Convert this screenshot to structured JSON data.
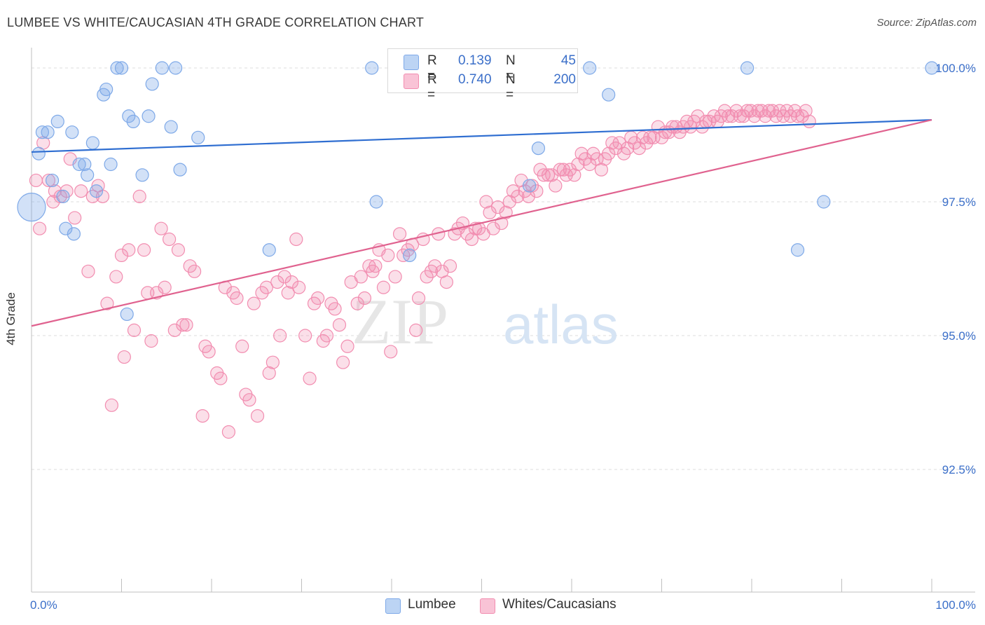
{
  "header": {
    "title": "LUMBEE VS WHITE/CAUCASIAN 4TH GRADE CORRELATION CHART",
    "source": "Source: ZipAtlas.com"
  },
  "watermark": {
    "zip": "ZIP",
    "atlas": "atlas"
  },
  "legend": {
    "rows": [
      {
        "r_label": "R =",
        "r_value": "0.139",
        "n_label": "N =",
        "n_value": "45",
        "color": "#7ea9e8"
      },
      {
        "r_label": "R =",
        "r_value": "0.740",
        "n_label": "N =",
        "n_value": "200",
        "color": "#f28db0"
      }
    ]
  },
  "bottom_legend": {
    "items": [
      {
        "label": "Lumbee",
        "color": "#7ea9e8"
      },
      {
        "label": "Whites/Caucasians",
        "color": "#f28db0"
      }
    ]
  },
  "chart_data": {
    "type": "scatter",
    "title": "LUMBEE VS WHITE/CAUCASIAN 4TH GRADE CORRELATION CHART",
    "xlabel": "",
    "ylabel": "4th Grade",
    "x_unit": "%",
    "y_unit": "%",
    "xlim": [
      0,
      100
    ],
    "ylim": [
      90.0,
      100.2
    ],
    "x_tick_labels": [
      "0.0%",
      "100.0%"
    ],
    "y_ticks": [
      100.0,
      97.5,
      95.0,
      92.5
    ],
    "y_tick_labels": [
      "100.0%",
      "97.5%",
      "95.0%",
      "92.5%"
    ],
    "grid": true,
    "legend_position": "top-center",
    "series": [
      {
        "name": "Lumbee",
        "color": "#7ea9e8",
        "trend": {
          "x": [
            0,
            100
          ],
          "y": [
            98.43,
            99.03
          ]
        },
        "points": [
          [
            0.8,
            98.4
          ],
          [
            1.2,
            98.8
          ],
          [
            1.8,
            98.8
          ],
          [
            2.3,
            97.9
          ],
          [
            2.9,
            99.0
          ],
          [
            3.5,
            97.6
          ],
          [
            3.8,
            97.0
          ],
          [
            4.5,
            98.8
          ],
          [
            4.7,
            96.9
          ],
          [
            5.3,
            98.2
          ],
          [
            5.9,
            98.2
          ],
          [
            6.2,
            98.0
          ],
          [
            6.8,
            98.6
          ],
          [
            7.2,
            97.7
          ],
          [
            8.0,
            99.5
          ],
          [
            8.3,
            99.6
          ],
          [
            8.8,
            98.2
          ],
          [
            9.5,
            100.0
          ],
          [
            10.0,
            100.0
          ],
          [
            10.6,
            95.4
          ],
          [
            10.8,
            99.1
          ],
          [
            11.3,
            99.0
          ],
          [
            12.3,
            98.0
          ],
          [
            13.0,
            99.1
          ],
          [
            13.4,
            99.7
          ],
          [
            14.5,
            100.0
          ],
          [
            15.5,
            98.9
          ],
          [
            16.0,
            100.0
          ],
          [
            16.5,
            98.1
          ],
          [
            18.5,
            98.7
          ],
          [
            26.4,
            96.6
          ],
          [
            38.3,
            97.5
          ],
          [
            37.8,
            100.0
          ],
          [
            42.0,
            96.5
          ],
          [
            55.3,
            97.8
          ],
          [
            56.3,
            98.5
          ],
          [
            62.0,
            100.0
          ],
          [
            64.1,
            99.5
          ],
          [
            79.5,
            100.0
          ],
          [
            85.1,
            96.6
          ],
          [
            88.0,
            97.5
          ],
          [
            100.0,
            100.0
          ],
          [
            0.0,
            97.4
          ]
        ]
      },
      {
        "name": "Whites/Caucasians",
        "color": "#f28db0",
        "trend": {
          "x": [
            0,
            100
          ],
          "y": [
            95.18,
            99.03
          ]
        },
        "points": [
          [
            0.5,
            97.9
          ],
          [
            0.9,
            97.0
          ],
          [
            1.3,
            98.6
          ],
          [
            1.9,
            97.9
          ],
          [
            2.4,
            97.5
          ],
          [
            2.6,
            97.7
          ],
          [
            3.2,
            97.6
          ],
          [
            3.9,
            97.7
          ],
          [
            4.3,
            98.3
          ],
          [
            4.8,
            97.2
          ],
          [
            5.5,
            97.7
          ],
          [
            6.3,
            96.2
          ],
          [
            6.8,
            97.6
          ],
          [
            7.4,
            97.8
          ],
          [
            7.9,
            97.6
          ],
          [
            8.4,
            95.6
          ],
          [
            8.9,
            93.7
          ],
          [
            9.4,
            96.1
          ],
          [
            10.0,
            96.5
          ],
          [
            10.3,
            94.6
          ],
          [
            10.8,
            96.6
          ],
          [
            11.4,
            95.1
          ],
          [
            12.0,
            97.6
          ],
          [
            12.5,
            96.6
          ],
          [
            12.9,
            95.8
          ],
          [
            13.3,
            94.9
          ],
          [
            13.9,
            95.8
          ],
          [
            14.4,
            97.0
          ],
          [
            14.8,
            95.9
          ],
          [
            15.3,
            96.8
          ],
          [
            15.9,
            95.1
          ],
          [
            16.3,
            96.6
          ],
          [
            16.8,
            95.2
          ],
          [
            17.2,
            95.2
          ],
          [
            17.6,
            96.3
          ],
          [
            18.1,
            96.2
          ],
          [
            19.0,
            93.5
          ],
          [
            19.3,
            94.8
          ],
          [
            19.7,
            94.7
          ],
          [
            20.6,
            94.3
          ],
          [
            21.0,
            94.2
          ],
          [
            21.5,
            95.9
          ],
          [
            21.9,
            93.2
          ],
          [
            22.4,
            95.8
          ],
          [
            22.8,
            95.7
          ],
          [
            23.4,
            94.8
          ],
          [
            23.8,
            93.9
          ],
          [
            24.2,
            93.8
          ],
          [
            24.7,
            95.6
          ],
          [
            25.1,
            93.5
          ],
          [
            25.6,
            95.8
          ],
          [
            26.1,
            95.9
          ],
          [
            26.4,
            94.3
          ],
          [
            26.8,
            94.5
          ],
          [
            27.3,
            96.0
          ],
          [
            27.6,
            95.0
          ],
          [
            28.1,
            96.1
          ],
          [
            28.5,
            95.8
          ],
          [
            28.9,
            96.0
          ],
          [
            29.4,
            96.8
          ],
          [
            29.7,
            95.9
          ],
          [
            30.4,
            95.0
          ],
          [
            30.9,
            94.2
          ],
          [
            31.4,
            95.6
          ],
          [
            31.8,
            95.7
          ],
          [
            32.4,
            94.9
          ],
          [
            32.8,
            95.0
          ],
          [
            33.3,
            95.6
          ],
          [
            33.7,
            95.5
          ],
          [
            34.2,
            95.2
          ],
          [
            34.6,
            94.5
          ],
          [
            35.1,
            94.8
          ],
          [
            35.5,
            96.0
          ],
          [
            36.2,
            95.6
          ],
          [
            36.6,
            96.1
          ],
          [
            37.0,
            95.7
          ],
          [
            37.5,
            96.3
          ],
          [
            37.9,
            96.2
          ],
          [
            38.2,
            96.3
          ],
          [
            38.6,
            96.6
          ],
          [
            39.1,
            95.9
          ],
          [
            39.6,
            96.5
          ],
          [
            39.9,
            94.7
          ],
          [
            40.4,
            96.1
          ],
          [
            40.9,
            96.9
          ],
          [
            41.3,
            96.5
          ],
          [
            41.8,
            96.6
          ],
          [
            42.3,
            96.7
          ],
          [
            42.7,
            95.1
          ],
          [
            43.0,
            95.7
          ],
          [
            43.5,
            96.8
          ],
          [
            43.9,
            96.1
          ],
          [
            44.4,
            96.2
          ],
          [
            44.8,
            96.3
          ],
          [
            45.2,
            96.9
          ],
          [
            45.6,
            96.2
          ],
          [
            46.1,
            96.0
          ],
          [
            46.5,
            96.3
          ],
          [
            47.0,
            96.9
          ],
          [
            47.4,
            97.0
          ],
          [
            47.9,
            97.1
          ],
          [
            48.4,
            96.9
          ],
          [
            48.9,
            96.8
          ],
          [
            49.3,
            97.0
          ],
          [
            49.7,
            97.0
          ],
          [
            50.2,
            96.9
          ],
          [
            50.5,
            97.5
          ],
          [
            50.9,
            97.3
          ],
          [
            51.3,
            97.0
          ],
          [
            51.8,
            97.4
          ],
          [
            52.2,
            97.1
          ],
          [
            52.7,
            97.3
          ],
          [
            53.1,
            97.5
          ],
          [
            53.5,
            97.7
          ],
          [
            54.0,
            97.6
          ],
          [
            54.4,
            97.9
          ],
          [
            54.8,
            97.7
          ],
          [
            55.2,
            97.6
          ],
          [
            55.6,
            97.8
          ],
          [
            56.1,
            97.7
          ],
          [
            56.5,
            98.1
          ],
          [
            56.9,
            98.0
          ],
          [
            57.4,
            98.0
          ],
          [
            57.8,
            98.0
          ],
          [
            58.2,
            97.8
          ],
          [
            58.7,
            98.1
          ],
          [
            59.1,
            98.1
          ],
          [
            59.4,
            98.0
          ],
          [
            59.8,
            98.1
          ],
          [
            60.3,
            98.0
          ],
          [
            60.7,
            98.2
          ],
          [
            61.1,
            98.4
          ],
          [
            61.5,
            98.3
          ],
          [
            62.0,
            98.2
          ],
          [
            62.4,
            98.4
          ],
          [
            62.8,
            98.3
          ],
          [
            63.3,
            98.1
          ],
          [
            63.7,
            98.3
          ],
          [
            64.1,
            98.4
          ],
          [
            64.5,
            98.6
          ],
          [
            64.9,
            98.5
          ],
          [
            65.3,
            98.6
          ],
          [
            65.8,
            98.4
          ],
          [
            66.2,
            98.5
          ],
          [
            66.6,
            98.7
          ],
          [
            67.0,
            98.6
          ],
          [
            67.5,
            98.5
          ],
          [
            67.9,
            98.7
          ],
          [
            68.3,
            98.6
          ],
          [
            68.7,
            98.7
          ],
          [
            69.1,
            98.7
          ],
          [
            69.6,
            98.9
          ],
          [
            70.0,
            98.7
          ],
          [
            70.4,
            98.8
          ],
          [
            70.8,
            98.8
          ],
          [
            71.2,
            98.9
          ],
          [
            71.6,
            98.9
          ],
          [
            72.0,
            98.8
          ],
          [
            72.4,
            98.9
          ],
          [
            72.8,
            99.0
          ],
          [
            73.2,
            98.9
          ],
          [
            73.6,
            99.0
          ],
          [
            74.0,
            99.1
          ],
          [
            74.5,
            98.9
          ],
          [
            74.9,
            99.0
          ],
          [
            75.3,
            99.0
          ],
          [
            75.8,
            99.1
          ],
          [
            76.2,
            99.0
          ],
          [
            76.6,
            99.1
          ],
          [
            77.0,
            99.2
          ],
          [
            77.4,
            99.1
          ],
          [
            77.8,
            99.1
          ],
          [
            78.3,
            99.2
          ],
          [
            78.7,
            99.1
          ],
          [
            79.1,
            99.1
          ],
          [
            79.5,
            99.2
          ],
          [
            79.9,
            99.2
          ],
          [
            80.3,
            99.1
          ],
          [
            80.7,
            99.2
          ],
          [
            81.1,
            99.2
          ],
          [
            81.5,
            99.1
          ],
          [
            81.9,
            99.2
          ],
          [
            82.3,
            99.2
          ],
          [
            82.7,
            99.1
          ],
          [
            83.1,
            99.2
          ],
          [
            83.5,
            99.1
          ],
          [
            83.9,
            99.2
          ],
          [
            84.3,
            99.1
          ],
          [
            84.8,
            99.2
          ],
          [
            85.1,
            99.1
          ],
          [
            85.6,
            99.1
          ],
          [
            86.0,
            99.2
          ],
          [
            86.4,
            99.0
          ]
        ]
      }
    ]
  }
}
